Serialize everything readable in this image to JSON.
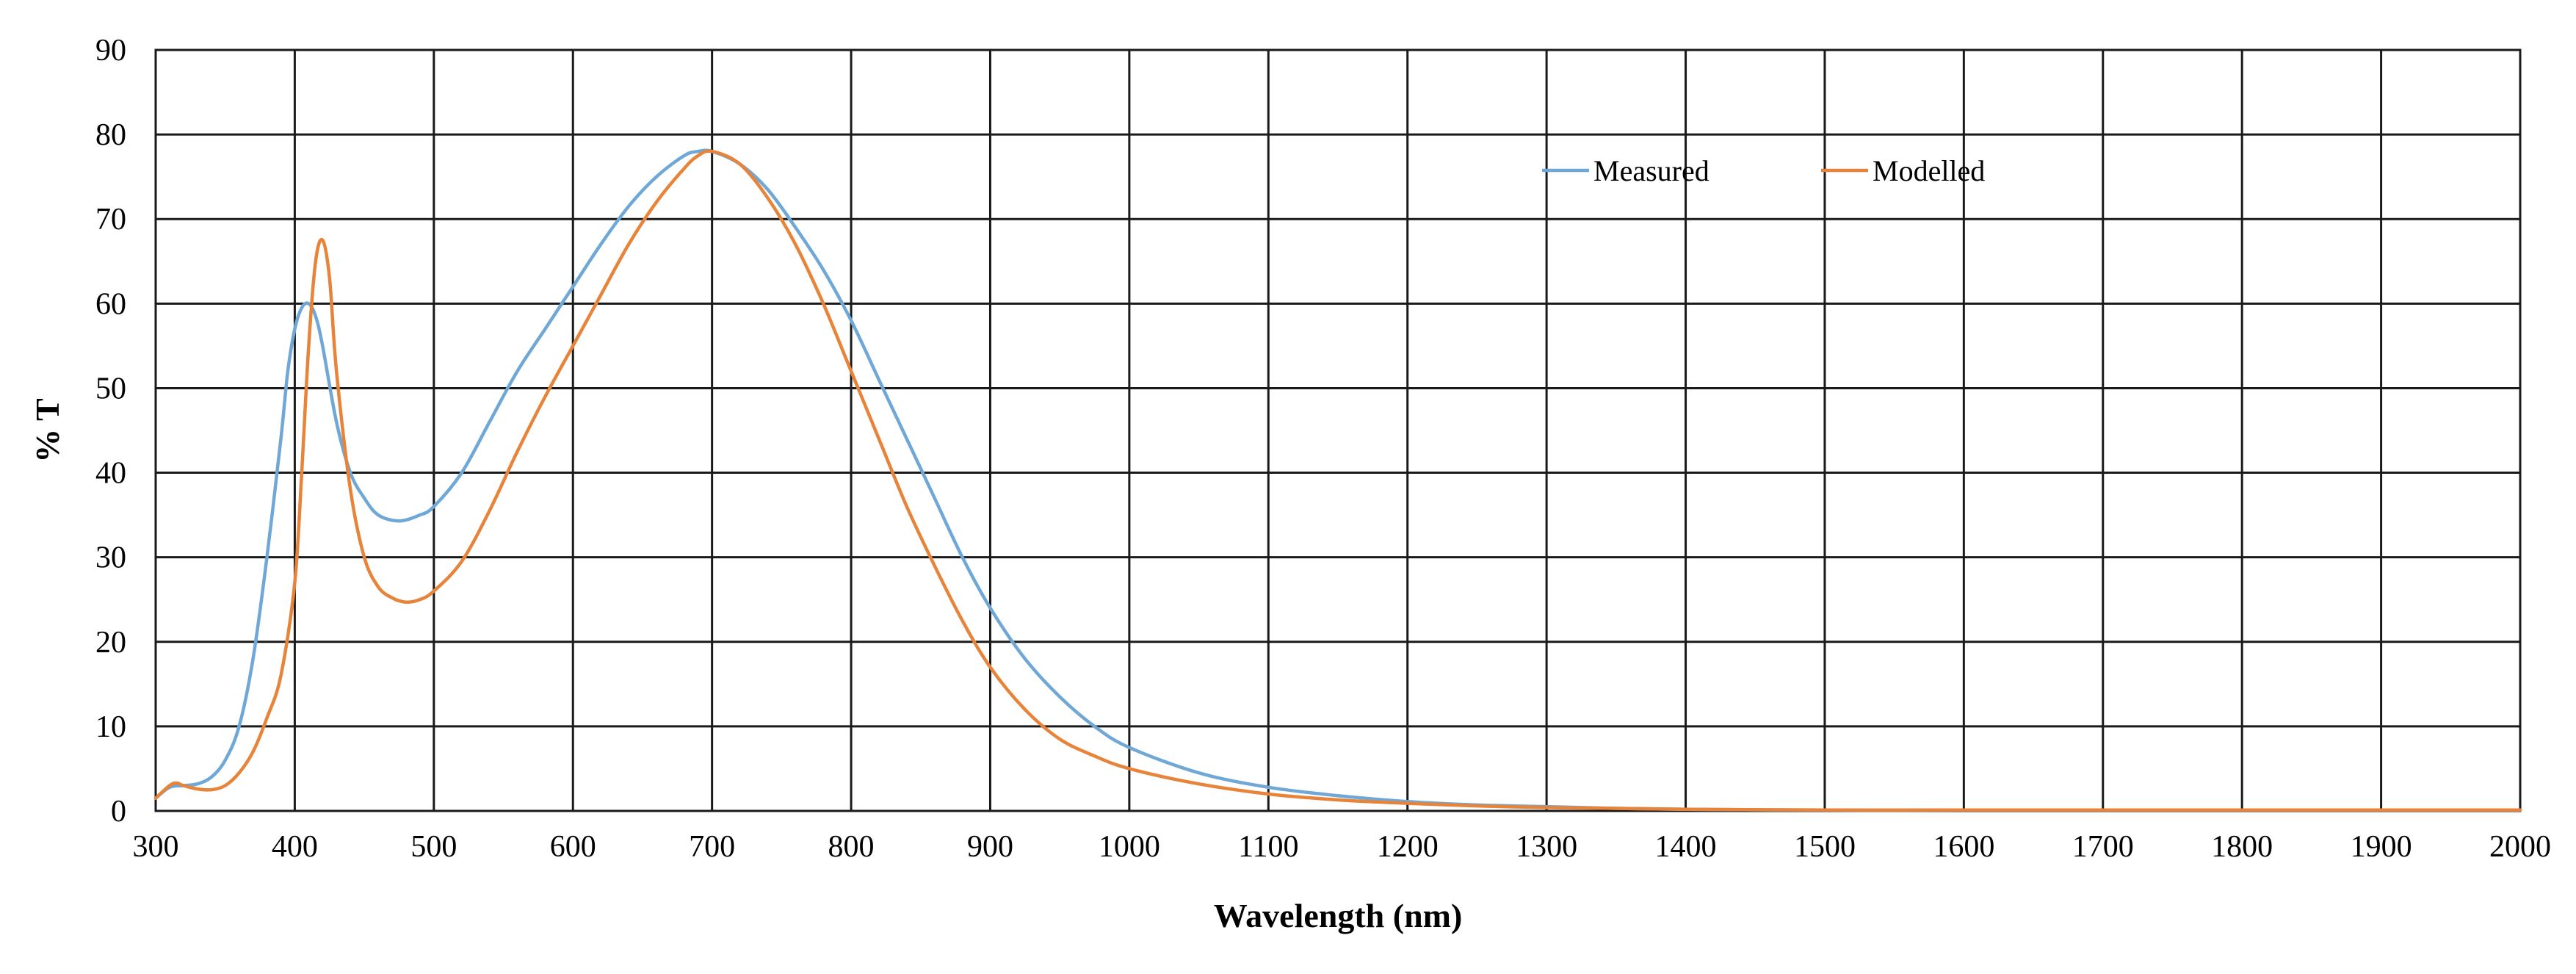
{
  "chart_data": {
    "type": "line",
    "title": "",
    "xlabel": "Wavelength (nm)",
    "ylabel": "% T",
    "xlim": [
      300,
      2000
    ],
    "ylim": [
      0,
      90
    ],
    "x_ticks": [
      300,
      400,
      500,
      600,
      700,
      800,
      900,
      1000,
      1100,
      1200,
      1300,
      1400,
      1500,
      1600,
      1700,
      1800,
      1900,
      2000
    ],
    "y_ticks": [
      0,
      10,
      20,
      30,
      40,
      50,
      60,
      70,
      80,
      90
    ],
    "grid": true,
    "legend_position": "top-right",
    "colors": {
      "Measured": "#6fa8d6",
      "Modelled": "#e8833a",
      "grid": "#1a1a1a"
    },
    "series": [
      {
        "name": "Measured",
        "x": [
          300,
          310,
          320,
          330,
          340,
          350,
          360,
          370,
          380,
          390,
          395,
          400,
          405,
          410,
          415,
          420,
          430,
          440,
          450,
          460,
          475,
          490,
          500,
          520,
          540,
          560,
          580,
          600,
          620,
          640,
          660,
          680,
          690,
          700,
          720,
          740,
          760,
          780,
          800,
          820,
          840,
          860,
          880,
          900,
          925,
          950,
          975,
          1000,
          1050,
          1100,
          1150,
          1200,
          1250,
          1300,
          1350,
          1400,
          1500,
          1600,
          1700,
          1800,
          1900,
          2000
        ],
        "values": [
          1.5,
          2.8,
          3.0,
          3.2,
          4.0,
          6.0,
          10.0,
          18.0,
          30.0,
          44.0,
          52.0,
          57.0,
          59.5,
          60.0,
          58.5,
          55.0,
          46.0,
          40.0,
          37.0,
          35.0,
          34.3,
          35.0,
          36.0,
          40.0,
          46.0,
          52.0,
          57.0,
          62.0,
          67.0,
          71.5,
          75.0,
          77.5,
          78.0,
          78.0,
          76.5,
          73.5,
          69.0,
          64.0,
          58.0,
          51.0,
          44.0,
          37.0,
          30.0,
          24.0,
          18.0,
          13.5,
          10.0,
          7.5,
          4.5,
          2.8,
          1.8,
          1.1,
          0.7,
          0.5,
          0.3,
          0.2,
          0.1,
          0.1,
          0.1,
          0.1,
          0.1,
          0.1
        ]
      },
      {
        "name": "Modelled",
        "x": [
          300,
          310,
          315,
          320,
          330,
          340,
          350,
          360,
          370,
          380,
          390,
          400,
          405,
          410,
          415,
          420,
          425,
          430,
          440,
          450,
          460,
          470,
          480,
          490,
          500,
          520,
          540,
          560,
          580,
          600,
          620,
          640,
          660,
          680,
          690,
          700,
          720,
          740,
          760,
          780,
          800,
          820,
          840,
          860,
          880,
          900,
          925,
          950,
          975,
          1000,
          1050,
          1100,
          1150,
          1200,
          1250,
          1300,
          1350,
          1400,
          1500,
          1600,
          1700,
          1800,
          1900,
          2000
        ],
        "values": [
          1.5,
          3.0,
          3.3,
          3.0,
          2.6,
          2.5,
          3.0,
          4.5,
          7.0,
          11.0,
          16.0,
          27.0,
          40.0,
          55.0,
          65.0,
          67.5,
          63.0,
          52.0,
          38.0,
          30.0,
          26.5,
          25.2,
          24.7,
          25.0,
          26.0,
          29.5,
          35.5,
          42.5,
          49.0,
          55.0,
          61.0,
          67.0,
          72.0,
          76.0,
          77.5,
          78.0,
          76.5,
          72.5,
          67.0,
          60.0,
          52.0,
          44.0,
          36.0,
          29.0,
          22.5,
          17.0,
          12.0,
          8.5,
          6.5,
          5.0,
          3.2,
          2.0,
          1.3,
          0.9,
          0.6,
          0.4,
          0.3,
          0.2,
          0.1,
          0.1,
          0.1,
          0.1,
          0.1,
          0.1
        ]
      }
    ]
  }
}
